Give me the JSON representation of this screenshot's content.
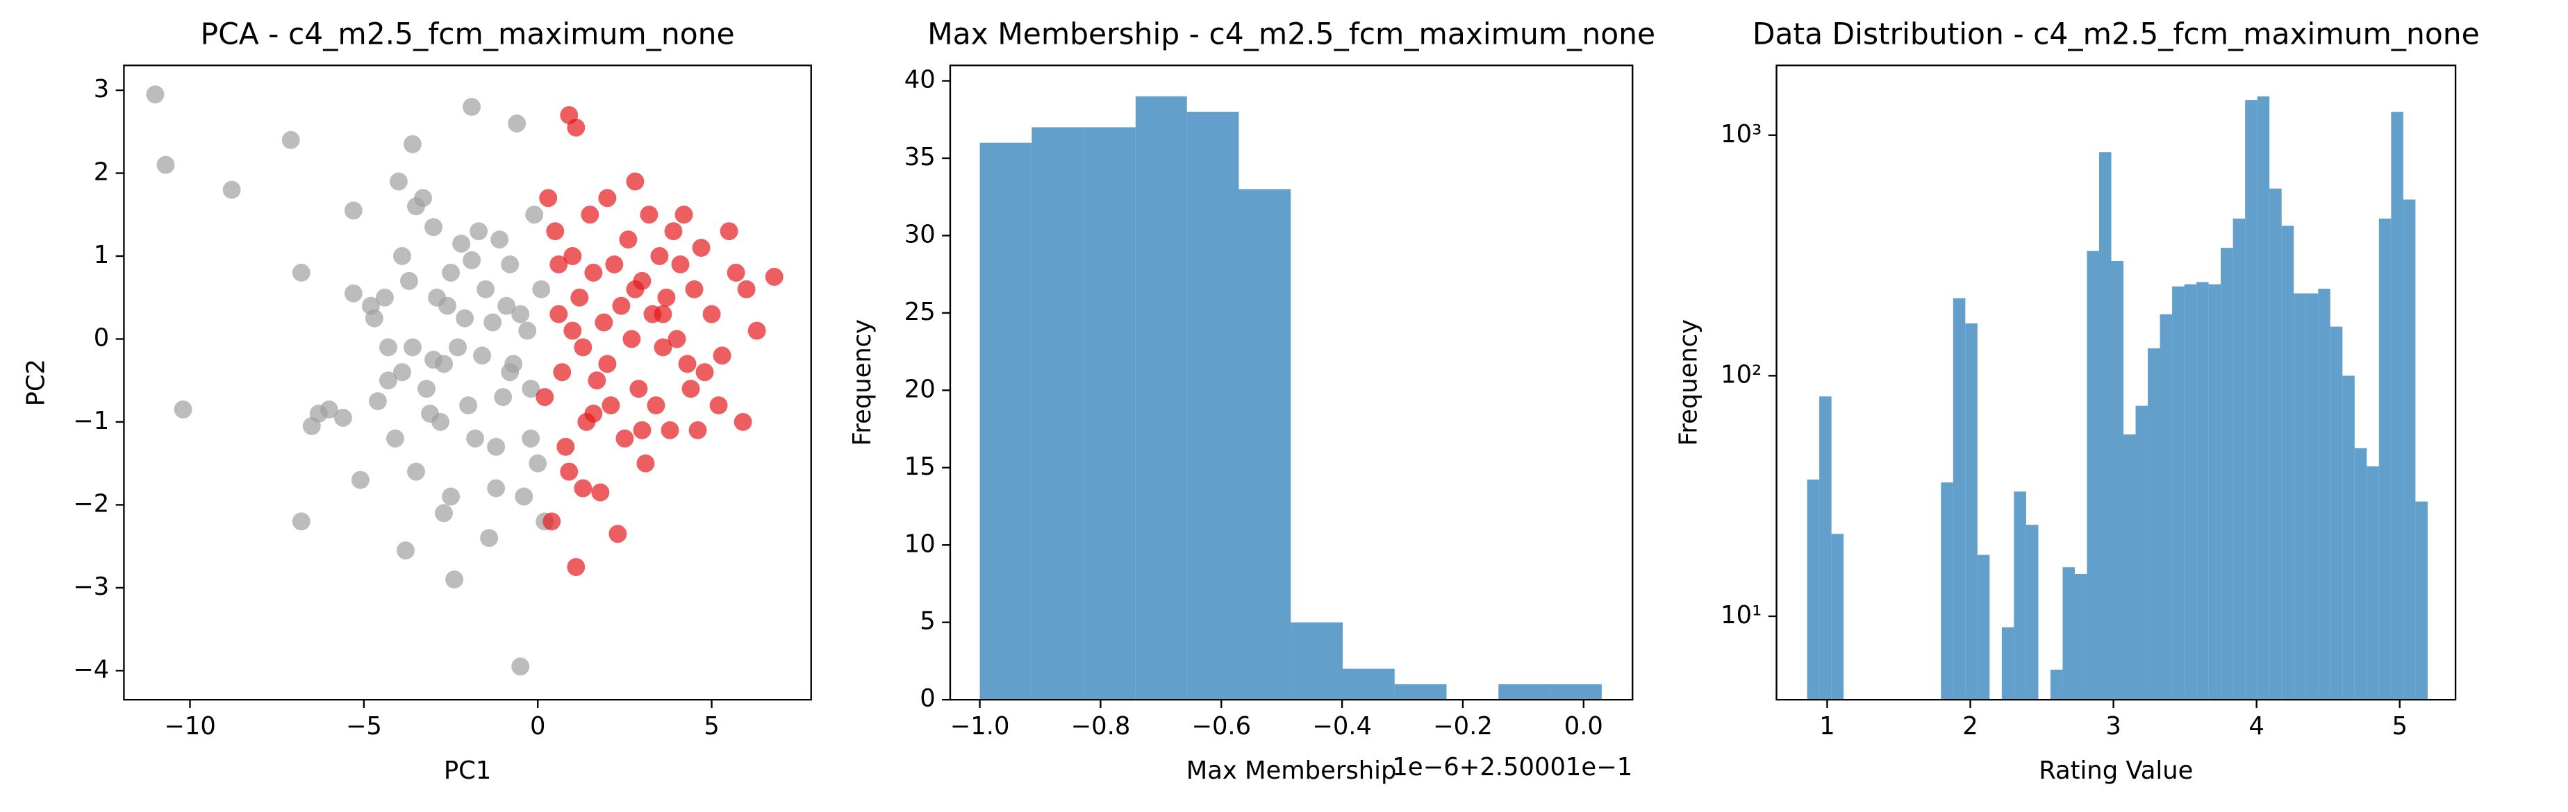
{
  "chart_data": [
    {
      "type": "scatter",
      "title": "PCA - c4_m2.5_fcm_maximum_none",
      "xlabel": "PC1",
      "ylabel": "PC2",
      "xlim": [
        -11.9,
        7.86
      ],
      "ylim": [
        -4.35,
        3.3
      ],
      "xticks": [
        {
          "value": -10,
          "label": "−10"
        },
        {
          "value": -5,
          "label": "−5"
        },
        0,
        5
      ],
      "yticks": [
        {
          "value": -4,
          "label": "−4"
        },
        {
          "value": -3,
          "label": "−3"
        },
        {
          "value": -2,
          "label": "−2"
        },
        {
          "value": -1,
          "label": "−1"
        },
        0,
        1,
        2,
        3
      ],
      "series": [
        {
          "color": "#a0a0a0",
          "x": [
            -11,
            -10.7,
            -10.2,
            -8.8,
            -7.1,
            -6.8,
            -6.8,
            -6.5,
            -6.3,
            -6,
            -5.6,
            -5.3,
            -5.3,
            -5.1,
            -4.8,
            -4.7,
            -4.6,
            -4.4,
            -4.3,
            -4.1,
            -4,
            -3.9,
            -3.9,
            -3.8,
            -3.7,
            -3.6,
            -3.6,
            -3.5,
            -3.3,
            -3.2,
            -3.1,
            -3,
            -3,
            -2.9,
            -2.8,
            -2.7,
            -2.6,
            -2.5,
            -2.4,
            -2.3,
            -2.2,
            -2.1,
            -2,
            -1.9,
            -1.9,
            -1.8,
            -1.7,
            -1.6,
            -1.5,
            -1.4,
            -1.3,
            -1.2,
            -1.1,
            -1,
            -0.9,
            -0.8,
            -0.7,
            -0.6,
            -0.5,
            -0.4,
            -0.3,
            -0.2,
            -0.1,
            0,
            0.2,
            0.1,
            -0.5,
            -0.8,
            -2.7,
            -4.3,
            -3.5,
            -1.2,
            -0.2,
            -2.5
          ],
          "values": [
            2.95,
            2.1,
            -0.85,
            1.8,
            2.4,
            0.8,
            -2.2,
            -1.05,
            -0.9,
            -0.85,
            -0.95,
            1.55,
            0.55,
            -1.7,
            0.4,
            0.25,
            -0.75,
            0.5,
            -0.5,
            -1.2,
            1.9,
            1.0,
            -0.4,
            -2.55,
            0.7,
            2.35,
            -0.1,
            1.6,
            1.7,
            -0.6,
            -0.9,
            1.35,
            -0.25,
            0.5,
            -1.0,
            -2.1,
            0.4,
            -1.9,
            -2.9,
            -0.1,
            1.15,
            0.25,
            -0.8,
            2.8,
            0.95,
            -1.2,
            1.3,
            -0.2,
            0.6,
            -2.4,
            0.2,
            -1.8,
            1.2,
            -0.7,
            0.4,
            0.9,
            -0.3,
            2.6,
            -3.95,
            -1.9,
            0.1,
            -0.6,
            1.5,
            -1.5,
            -2.2,
            0.6,
            0.3,
            -0.4,
            -0.3,
            -0.1,
            -1.6,
            -1.3,
            -1.2,
            0.8
          ]
        },
        {
          "color": "#e41a1c",
          "x": [
            0.3,
            0.5,
            0.6,
            0.7,
            0.8,
            0.9,
            0.9,
            1,
            1.1,
            1.1,
            1.2,
            1.3,
            1.4,
            1.5,
            1.6,
            1.7,
            1.8,
            1.9,
            2,
            2.1,
            2.2,
            2.3,
            2.4,
            2.5,
            2.6,
            2.7,
            2.8,
            2.9,
            3,
            3.1,
            3.2,
            3.3,
            3.4,
            3.5,
            3.6,
            3.7,
            3.8,
            3.9,
            4,
            4.1,
            4.2,
            4.3,
            4.5,
            4.6,
            4.7,
            4.8,
            5,
            5.2,
            5.5,
            5.7,
            5.9,
            6,
            6.3,
            6.8,
            0.4,
            1.3,
            0.6,
            2.0,
            3.0,
            4.4,
            1.0,
            0.2,
            1.6,
            5.3,
            2.8,
            3.6
          ],
          "values": [
            1.7,
            1.3,
            0.3,
            -0.4,
            -1.3,
            2.7,
            -1.6,
            1.0,
            2.55,
            -2.75,
            0.5,
            -0.1,
            -1.0,
            1.5,
            0.8,
            -0.5,
            -1.85,
            0.2,
            1.7,
            -0.8,
            0.9,
            -2.35,
            0.4,
            -1.2,
            1.2,
            0.0,
            1.9,
            -0.6,
            0.7,
            -1.5,
            1.5,
            0.3,
            -0.8,
            1.0,
            -0.1,
            0.5,
            -1.1,
            1.3,
            0.0,
            0.9,
            1.5,
            -0.3,
            0.6,
            -1.1,
            1.1,
            -0.4,
            0.3,
            -0.8,
            1.3,
            0.8,
            -1.0,
            0.6,
            0.1,
            0.75,
            -2.2,
            -1.8,
            0.9,
            -0.3,
            -1.1,
            -0.6,
            0.1,
            -0.7,
            -0.9,
            -0.2,
            0.6,
            0.3
          ]
        }
      ]
    },
    {
      "type": "histogram",
      "title": "Max Membership - c4_m2.5_fcm_maximum_none",
      "xlabel": "Max Membership",
      "ylabel": "Frequency",
      "offset_text": "1e−6+2.50001e−1",
      "color": "#629fca",
      "bins": [
        -1.0,
        -0.914,
        -0.828,
        -0.742,
        -0.657,
        -0.571,
        -0.485,
        -0.399,
        -0.313,
        -0.227,
        -0.141,
        -0.056,
        0.03
      ],
      "counts": [
        36,
        37,
        37,
        39,
        38,
        33,
        5,
        2,
        1,
        0,
        1,
        1
      ],
      "xlim": [
        -1.049,
        0.081
      ],
      "ylim": [
        0,
        41
      ],
      "xticks": [
        {
          "value": -1.0,
          "label": "−1.0"
        },
        {
          "value": -0.8,
          "label": "−0.8"
        },
        {
          "value": -0.6,
          "label": "−0.6"
        },
        {
          "value": -0.4,
          "label": "−0.4"
        },
        {
          "value": -0.2,
          "label": "−0.2"
        },
        {
          "value": 0,
          "label": "0.0"
        }
      ],
      "yticks": [
        0,
        5,
        10,
        15,
        20,
        25,
        30,
        35,
        40
      ]
    },
    {
      "type": "histogram",
      "title": "Data Distribution - c4_m2.5_fcm_maximum_none",
      "xlabel": "Rating Value",
      "ylabel": "Frequency",
      "color": "#629fca",
      "log_y": true,
      "bins": [
        0.86,
        0.945,
        1.03,
        1.115,
        1.2,
        1.285,
        1.37,
        1.455,
        1.54,
        1.625,
        1.71,
        1.795,
        1.88,
        1.965,
        2.05,
        2.135,
        2.22,
        2.305,
        2.39,
        2.475,
        2.56,
        2.645,
        2.73,
        2.815,
        2.9,
        2.985,
        3.07,
        3.155,
        3.24,
        3.325,
        3.41,
        3.495,
        3.58,
        3.665,
        3.75,
        3.835,
        3.92,
        4.005,
        4.09,
        4.175,
        4.26,
        4.345,
        4.43,
        4.515,
        4.6,
        4.685,
        4.77,
        4.855,
        4.94,
        5.025,
        5.11,
        5.195
      ],
      "counts": [
        37,
        82,
        22,
        0,
        0,
        0,
        0,
        0,
        0,
        0,
        0,
        36,
        210,
        165,
        18,
        0,
        9,
        33,
        24,
        0,
        6,
        16,
        15,
        330,
        850,
        300,
        57,
        75,
        130,
        180,
        235,
        240,
        245,
        240,
        340,
        450,
        1400,
        1450,
        600,
        420,
        220,
        220,
        230,
        160,
        100,
        50,
        42,
        450,
        1250,
        540,
        30
      ],
      "xlim": [
        0.646,
        5.39
      ],
      "ylim": [
        4.5,
        1950
      ],
      "xticks": [
        1,
        2,
        3,
        4,
        5
      ],
      "yticks": [
        {
          "value": 10,
          "label": "10¹"
        },
        {
          "value": 100,
          "label": "10²"
        },
        {
          "value": 1000,
          "label": "10³"
        }
      ]
    }
  ]
}
